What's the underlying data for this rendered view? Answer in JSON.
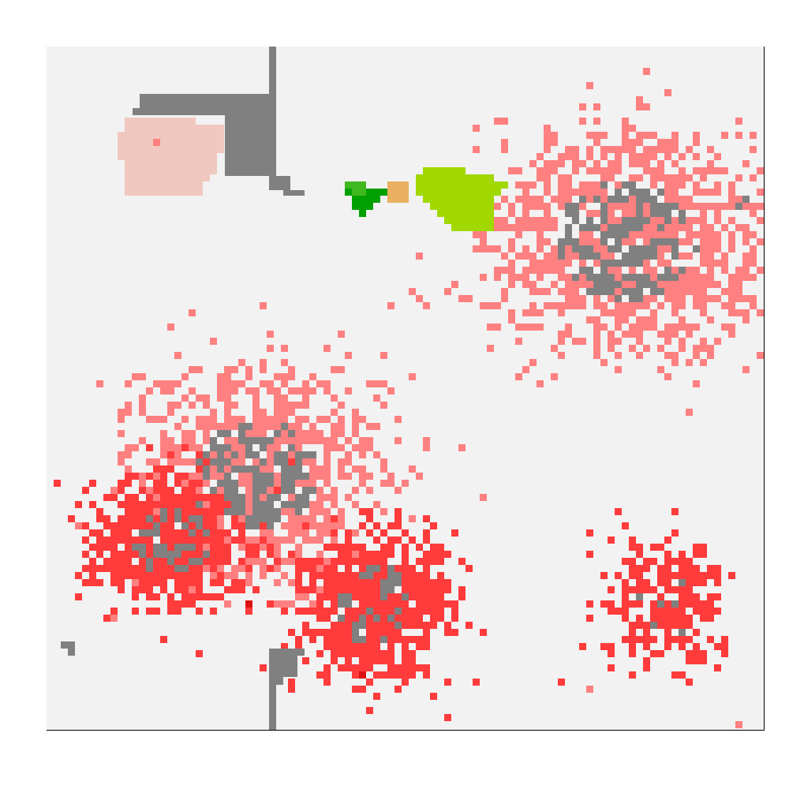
{
  "grid": {
    "cols": 101,
    "rows": 96,
    "background_color": "#f2f2f2",
    "border_color": "#000000"
  },
  "palette": {
    "wall": "#808080",
    "light_pink": "#f0c8c0",
    "salmon": "#ff8080",
    "red": "#ff3b3b",
    "dark_red": "#dd1111",
    "dark_green": "#00a000",
    "medium_green": "#40b820",
    "lime_green": "#a0d800",
    "tan": "#e8b060"
  },
  "regions": [
    {
      "name": "light-pink-zone",
      "color": "light_pink"
    },
    {
      "name": "dark-green-agent",
      "color": "dark_green"
    },
    {
      "name": "tan-agent",
      "color": "tan"
    },
    {
      "name": "lime-green-zone",
      "color": "lime_green"
    },
    {
      "name": "northeast-cluster",
      "color": "salmon"
    },
    {
      "name": "west-cluster",
      "color": "salmon"
    },
    {
      "name": "southwest-cluster",
      "color": "red"
    },
    {
      "name": "south-central-cluster",
      "color": "red"
    },
    {
      "name": "southeast-cluster",
      "color": "red"
    }
  ]
}
